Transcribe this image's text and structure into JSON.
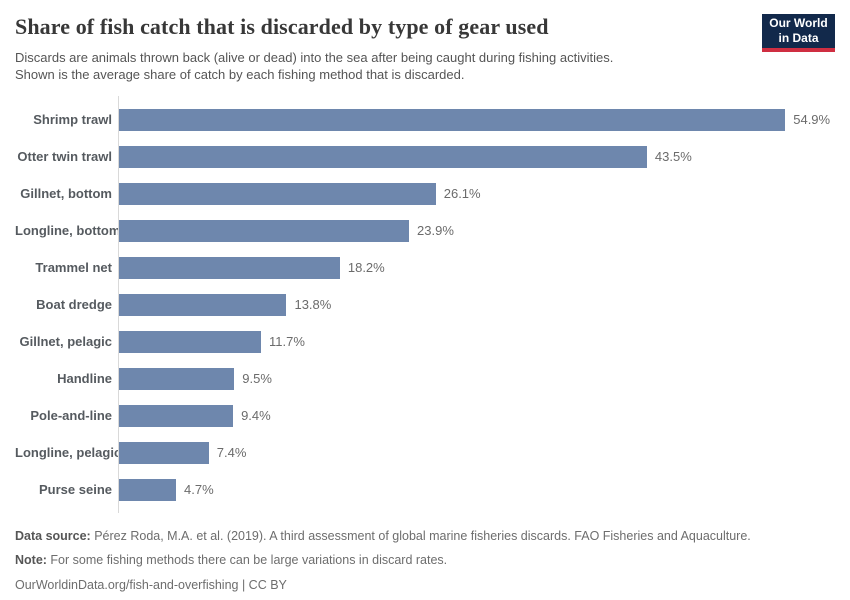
{
  "header": {
    "title": "Share of fish catch that is discarded by type of gear used",
    "subtitle_line1": "Discards are animals thrown back (alive or dead) into the sea after being caught during fishing activities.",
    "subtitle_line2": "Shown is the average share of catch by each fishing method that is discarded.",
    "logo": {
      "line1": "Our World",
      "line2": "in Data",
      "bg_color": "#12294b",
      "accent_color": "#cf2e41"
    }
  },
  "chart_data": {
    "type": "bar",
    "orientation": "horizontal",
    "title": "Share of fish catch that is discarded by type of gear used",
    "xlabel": "",
    "ylabel": "",
    "categories": [
      "Shrimp trawl",
      "Otter twin trawl",
      "Gillnet, bottom",
      "Longline, bottom",
      "Trammel net",
      "Boat dredge",
      "Gillnet, pelagic",
      "Handline",
      "Pole-and-line",
      "Longline, pelagic",
      "Purse seine"
    ],
    "values": [
      54.9,
      43.5,
      26.1,
      23.9,
      18.2,
      13.8,
      11.7,
      9.5,
      9.4,
      7.4,
      4.7
    ],
    "value_labels": [
      "54.9%",
      "43.5%",
      "26.1%",
      "23.9%",
      "18.2%",
      "13.8%",
      "11.7%",
      "9.5%",
      "9.4%",
      "7.4%",
      "4.7%"
    ],
    "xlim": [
      0,
      59
    ],
    "grid": false,
    "legend": "none",
    "bar_color": "#6e87ad",
    "axis_line_color": "#d9d9d9"
  },
  "footer": {
    "data_source_label": "Data source:",
    "data_source_text": " Pérez Roda, M.A. et al. (2019). A third assessment of global marine fisheries discards. FAO Fisheries and Aquaculture.",
    "note_label": "Note:",
    "note_text": " For some fishing methods there can be large variations in discard rates.",
    "license_text": "OurWorldinData.org/fish-and-overfishing | CC BY"
  }
}
